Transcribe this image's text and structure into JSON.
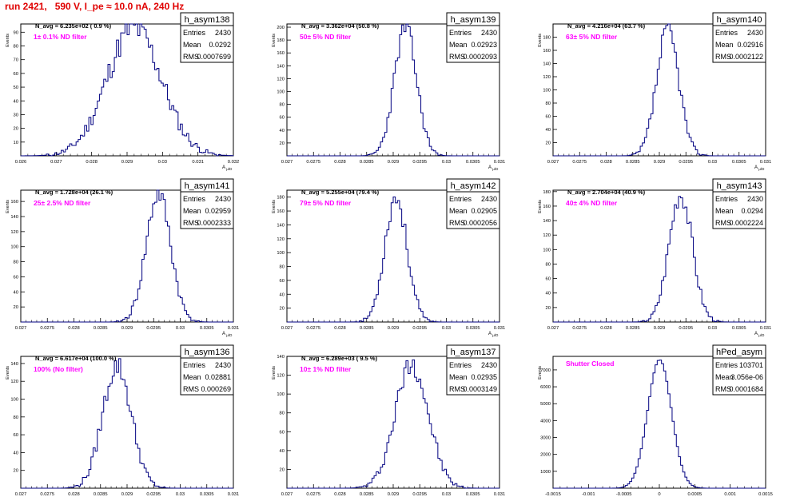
{
  "title": "run 2421,   590 V, I_pe ≈ 10.0 nA, 240 Hz",
  "colors": {
    "title": "#e00000",
    "hist_line": "#000080",
    "annotation": "#ff00ff",
    "frame": "#000000"
  },
  "stat_labels": {
    "entries": "Entries",
    "mean": "Mean",
    "rms": "RMS"
  },
  "x_axis_label_main": "A",
  "x_axis_label_sub": "μ/D",
  "y_axis_label": "Events",
  "chart_data": [
    {
      "type": "histogram",
      "name": "h_asym138",
      "navg": "N_avg = 6.235e+02 ( 0.9 %)",
      "annotation": "1± 0.1% ND filter",
      "stats": {
        "entries": "2430",
        "mean": "0.0292",
        "rms": "0.0007699"
      },
      "xlim": [
        0.026,
        0.032
      ],
      "ylim": [
        0,
        96
      ],
      "xticks": [
        0.026,
        0.027,
        0.028,
        0.029,
        0.03,
        0.031,
        0.032
      ],
      "xtick_labels": [
        "0.026",
        "0.027",
        "0.028",
        "0.029",
        "0.03",
        "0.031",
        "0.032"
      ],
      "yticks": [
        10,
        20,
        30,
        40,
        50,
        60,
        70,
        80,
        90
      ],
      "peak": 0.0292,
      "peak_value": 93,
      "width": 0.00077,
      "seed": 11
    },
    {
      "type": "histogram",
      "name": "h_asym139",
      "navg": "N_avg = 3.362e+04 (50.8 %)",
      "annotation": "50± 5% ND filter",
      "stats": {
        "entries": "2430",
        "mean": "0.02923",
        "rms": "0.0002093"
      },
      "xlim": [
        0.027,
        0.031
      ],
      "ylim": [
        0,
        205
      ],
      "xticks": [
        0.027,
        0.0275,
        0.028,
        0.0285,
        0.029,
        0.0295,
        0.03,
        0.0305,
        0.031
      ],
      "xtick_labels": [
        "0.027",
        "0.0275",
        "0.028",
        "0.0285",
        "0.029",
        "0.0295",
        "0.03",
        "0.0305",
        "0.031"
      ],
      "yticks": [
        20,
        40,
        60,
        80,
        100,
        120,
        140,
        160,
        180,
        200
      ],
      "peak": 0.02923,
      "peak_value": 198,
      "width": 0.00021,
      "seed": 23
    },
    {
      "type": "histogram",
      "name": "h_asym140",
      "navg": "N_avg = 4.216e+04 (63.7 %)",
      "annotation": "63± 5% ND filter",
      "stats": {
        "entries": "2430",
        "mean": "0.02916",
        "rms": "0.0002122"
      },
      "xlim": [
        0.027,
        0.031
      ],
      "ylim": [
        0,
        200
      ],
      "xticks": [
        0.027,
        0.0275,
        0.028,
        0.0285,
        0.029,
        0.0295,
        0.03,
        0.0305,
        0.031
      ],
      "xtick_labels": [
        "0.027",
        "0.0275",
        "0.028",
        "0.0285",
        "0.029",
        "0.0295",
        "0.03",
        "0.0305",
        "0.031"
      ],
      "yticks": [
        20,
        40,
        60,
        80,
        100,
        120,
        140,
        160,
        180
      ],
      "peak": 0.02916,
      "peak_value": 190,
      "width": 0.00021,
      "seed": 37
    },
    {
      "type": "histogram",
      "name": "h_asym141",
      "navg": "N_avg = 1.728e+04 (26.1 %)",
      "annotation": "25± 2.5% ND filter",
      "stats": {
        "entries": "2430",
        "mean": "0.02959",
        "rms": "0.0002333"
      },
      "xlim": [
        0.027,
        0.031
      ],
      "ylim": [
        0,
        175
      ],
      "xticks": [
        0.027,
        0.0275,
        0.028,
        0.0285,
        0.029,
        0.0295,
        0.03,
        0.0305,
        0.031
      ],
      "xtick_labels": [
        "0.027",
        "0.0275",
        "0.028",
        "0.0285",
        "0.029",
        "0.0295",
        "0.03",
        "0.0305",
        "0.031"
      ],
      "yticks": [
        20,
        40,
        60,
        80,
        100,
        120,
        140,
        160
      ],
      "peak": 0.02959,
      "peak_value": 170,
      "width": 0.00023,
      "seed": 41
    },
    {
      "type": "histogram",
      "name": "h_asym142",
      "navg": "N_avg = 5.255e+04 (79.4 %)",
      "annotation": "79± 5% ND filter",
      "stats": {
        "entries": "2430",
        "mean": "0.02905",
        "rms": "0.0002056"
      },
      "xlim": [
        0.027,
        0.031
      ],
      "ylim": [
        0,
        190
      ],
      "xticks": [
        0.027,
        0.0275,
        0.028,
        0.0285,
        0.029,
        0.0295,
        0.03,
        0.0305,
        0.031
      ],
      "xtick_labels": [
        "0.027",
        "0.0275",
        "0.028",
        "0.0285",
        "0.029",
        "0.0295",
        "0.03",
        "0.0305",
        "0.031"
      ],
      "yticks": [
        20,
        40,
        60,
        80,
        100,
        120,
        140,
        160,
        180
      ],
      "peak": 0.02905,
      "peak_value": 180,
      "width": 0.00021,
      "seed": 53
    },
    {
      "type": "histogram",
      "name": "h_asym143",
      "navg": "N_avg = 2.704e+04 (40.9 %)",
      "annotation": "40± 4% ND filter",
      "stats": {
        "entries": "2430",
        "mean": "0.0294",
        "rms": "0.0002224"
      },
      "xlim": [
        0.027,
        0.031
      ],
      "ylim": [
        0,
        182
      ],
      "xticks": [
        0.027,
        0.0275,
        0.028,
        0.0285,
        0.029,
        0.0295,
        0.03,
        0.0305,
        0.031
      ],
      "xtick_labels": [
        "0.027",
        "0.0275",
        "0.028",
        "0.0285",
        "0.029",
        "0.0295",
        "0.03",
        "0.0305",
        "0.031"
      ],
      "yticks": [
        20,
        40,
        60,
        80,
        100,
        120,
        140,
        160,
        180
      ],
      "peak": 0.0294,
      "peak_value": 178,
      "width": 0.00022,
      "seed": 67
    },
    {
      "type": "histogram",
      "name": "h_asym136",
      "navg": "N_avg = 6.617e+04 (100.0 %)",
      "annotation": "100% (No filter)",
      "stats": {
        "entries": "2430",
        "mean": "0.02881",
        "rms": "0.000269"
      },
      "xlim": [
        0.027,
        0.031
      ],
      "ylim": [
        0,
        148
      ],
      "xticks": [
        0.027,
        0.0275,
        0.028,
        0.0285,
        0.029,
        0.0295,
        0.03,
        0.0305,
        0.031
      ],
      "xtick_labels": [
        "0.027",
        "0.0275",
        "0.028",
        "0.0285",
        "0.029",
        "0.0295",
        "0.03",
        "0.0305",
        "0.031"
      ],
      "yticks": [
        20,
        40,
        60,
        80,
        100,
        120,
        140
      ],
      "peak": 0.02881,
      "peak_value": 138,
      "width": 0.00027,
      "seed": 79
    },
    {
      "type": "histogram",
      "name": "h_asym137",
      "navg": "N_avg = 6.289e+03 ( 9.5 %)",
      "annotation": "10± 1% ND filter",
      "stats": {
        "entries": "2430",
        "mean": "0.02935",
        "rms": "0.0003149"
      },
      "xlim": [
        0.027,
        0.031
      ],
      "ylim": [
        0,
        140
      ],
      "xticks": [
        0.027,
        0.0275,
        0.028,
        0.0285,
        0.029,
        0.0295,
        0.03,
        0.0305,
        0.031
      ],
      "xtick_labels": [
        "0.027",
        "0.0275",
        "0.028",
        "0.0285",
        "0.029",
        "0.0295",
        "0.03",
        "0.0305",
        "0.031"
      ],
      "yticks": [
        20,
        40,
        60,
        80,
        100,
        120,
        140
      ],
      "peak": 0.02935,
      "peak_value": 133,
      "width": 0.00031,
      "seed": 97
    },
    {
      "type": "histogram",
      "name": "hPed_asym",
      "navg": "",
      "annotation": "Shutter Closed",
      "stats": {
        "entries": "103701",
        "mean": "3.056e-06",
        "rms": "0.0001684"
      },
      "xlim": [
        -0.0015,
        0.0015
      ],
      "ylim": [
        0,
        7800
      ],
      "xticks": [
        -0.0015,
        -0.001,
        -0.0005,
        0,
        0.0005,
        0.001,
        0.0015
      ],
      "xtick_labels": [
        "-0.0015",
        "-0.001",
        "-0.0005",
        "0",
        "0.0005",
        "0.001",
        "0.0015"
      ],
      "yticks": [
        1000,
        2000,
        3000,
        4000,
        5000,
        6000,
        7000
      ],
      "peak": 3.1e-06,
      "peak_value": 7600,
      "width": 0.000168,
      "seed": 0
    }
  ]
}
